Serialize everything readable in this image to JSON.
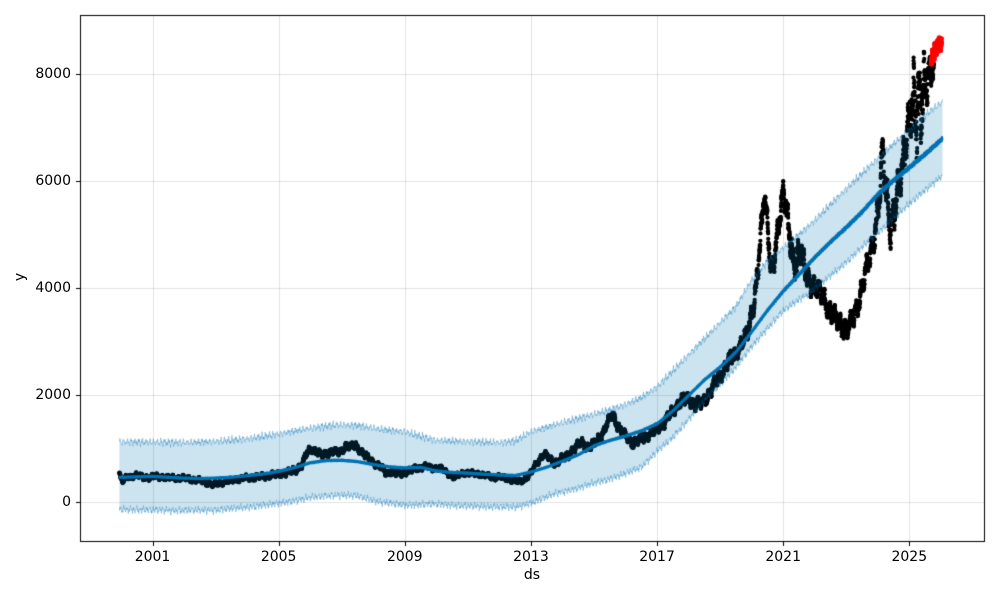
{
  "figure": {
    "background": "#ffffff"
  },
  "chart_data": {
    "type": "scatter",
    "title": "",
    "xlabel": "ds",
    "ylabel": "y",
    "xlim": [
      1998.7,
      2027.4
    ],
    "ylim": [
      -748,
      9102
    ],
    "xticks": [
      2001,
      2005,
      2009,
      2013,
      2017,
      2021,
      2025
    ],
    "yticks": [
      0,
      2000,
      4000,
      6000,
      8000
    ],
    "grid": true,
    "grid_color": "rgba(128,128,128,0.22)",
    "axis_color": "#000000",
    "colors": {
      "actuals": "#000000",
      "forecast_line": "#0072B2",
      "uncertainty_fill": "rgba(0,114,178,0.2)",
      "uncertainty_edge": "rgba(0,114,178,0.3)",
      "future_points": "#ff0000"
    },
    "series": [
      {
        "name": "actuals",
        "kind": "scatter",
        "color": "#000000",
        "marker_radius": 2.1,
        "samples_per_year": 365,
        "t_start": 1999.95,
        "t_end": 2025.78,
        "clamp_max": 8740,
        "keyframes": [
          [
            1999.95,
            520
          ],
          [
            2000.0,
            430
          ],
          [
            2000.08,
            380
          ],
          [
            2000.17,
            455
          ],
          [
            2000.3,
            480
          ],
          [
            2000.5,
            495
          ],
          [
            2000.7,
            465
          ],
          [
            2000.9,
            455
          ],
          [
            2001.1,
            480
          ],
          [
            2001.4,
            455
          ],
          [
            2001.7,
            450
          ],
          [
            2002.0,
            445
          ],
          [
            2002.3,
            420
          ],
          [
            2002.6,
            390
          ],
          [
            2002.9,
            320
          ],
          [
            2003.1,
            350
          ],
          [
            2003.35,
            385
          ],
          [
            2003.6,
            410
          ],
          [
            2003.85,
            445
          ],
          [
            2004.1,
            455
          ],
          [
            2004.4,
            470
          ],
          [
            2004.7,
            495
          ],
          [
            2005.0,
            520
          ],
          [
            2005.3,
            550
          ],
          [
            2005.55,
            600
          ],
          [
            2005.75,
            700
          ],
          [
            2005.9,
            920
          ],
          [
            2006.05,
            1000
          ],
          [
            2006.2,
            940
          ],
          [
            2006.35,
            870
          ],
          [
            2006.5,
            905
          ],
          [
            2006.7,
            945
          ],
          [
            2006.85,
            920
          ],
          [
            2007.0,
            960
          ],
          [
            2007.15,
            1060
          ],
          [
            2007.3,
            1030
          ],
          [
            2007.45,
            1060
          ],
          [
            2007.6,
            950
          ],
          [
            2007.75,
            860
          ],
          [
            2007.9,
            790
          ],
          [
            2008.1,
            700
          ],
          [
            2008.3,
            610
          ],
          [
            2008.45,
            530
          ],
          [
            2008.6,
            570
          ],
          [
            2008.75,
            520
          ],
          [
            2008.9,
            540
          ],
          [
            2009.1,
            570
          ],
          [
            2009.3,
            620
          ],
          [
            2009.5,
            645
          ],
          [
            2009.7,
            665
          ],
          [
            2009.9,
            630
          ],
          [
            2010.1,
            635
          ],
          [
            2010.3,
            570
          ],
          [
            2010.55,
            450
          ],
          [
            2010.7,
            510
          ],
          [
            2010.9,
            545
          ],
          [
            2011.1,
            535
          ],
          [
            2011.4,
            520
          ],
          [
            2011.6,
            490
          ],
          [
            2011.8,
            455
          ],
          [
            2012.0,
            470
          ],
          [
            2012.2,
            440
          ],
          [
            2012.45,
            400
          ],
          [
            2012.6,
            380
          ],
          [
            2012.8,
            420
          ],
          [
            2013.0,
            540
          ],
          [
            2013.2,
            740
          ],
          [
            2013.4,
            900
          ],
          [
            2013.55,
            830
          ],
          [
            2013.7,
            740
          ],
          [
            2013.85,
            760
          ],
          [
            2014.0,
            810
          ],
          [
            2014.2,
            890
          ],
          [
            2014.4,
            1000
          ],
          [
            2014.6,
            1130
          ],
          [
            2014.8,
            1010
          ],
          [
            2015.0,
            1080
          ],
          [
            2015.15,
            1200
          ],
          [
            2015.3,
            1300
          ],
          [
            2015.45,
            1500
          ],
          [
            2015.6,
            1660
          ],
          [
            2015.75,
            1420
          ],
          [
            2015.9,
            1280
          ],
          [
            2016.05,
            1230
          ],
          [
            2016.25,
            1080
          ],
          [
            2016.45,
            1170
          ],
          [
            2016.65,
            1230
          ],
          [
            2016.85,
            1280
          ],
          [
            2017.0,
            1380
          ],
          [
            2017.2,
            1450
          ],
          [
            2017.4,
            1620
          ],
          [
            2017.6,
            1780
          ],
          [
            2017.8,
            1900
          ],
          [
            2018.0,
            1940
          ],
          [
            2018.2,
            1800
          ],
          [
            2018.45,
            1870
          ],
          [
            2018.7,
            2060
          ],
          [
            2018.9,
            2280
          ],
          [
            2019.1,
            2450
          ],
          [
            2019.3,
            2650
          ],
          [
            2019.5,
            2800
          ],
          [
            2019.7,
            2950
          ],
          [
            2019.85,
            3150
          ],
          [
            2020.0,
            3550
          ],
          [
            2020.15,
            4000
          ],
          [
            2020.3,
            5000
          ],
          [
            2020.4,
            5800
          ],
          [
            2020.5,
            5300
          ],
          [
            2020.62,
            4250
          ],
          [
            2020.75,
            4600
          ],
          [
            2020.88,
            5300
          ],
          [
            2021.0,
            5880
          ],
          [
            2021.1,
            5500
          ],
          [
            2021.2,
            4900
          ],
          [
            2021.33,
            4420
          ],
          [
            2021.45,
            4650
          ],
          [
            2021.55,
            4750
          ],
          [
            2021.68,
            4300
          ],
          [
            2021.8,
            4150
          ],
          [
            2021.95,
            4060
          ],
          [
            2022.1,
            3950
          ],
          [
            2022.3,
            3800
          ],
          [
            2022.5,
            3550
          ],
          [
            2022.7,
            3400
          ],
          [
            2022.9,
            3280
          ],
          [
            2023.05,
            3230
          ],
          [
            2023.2,
            3400
          ],
          [
            2023.35,
            3700
          ],
          [
            2023.5,
            3950
          ],
          [
            2023.7,
            4500
          ],
          [
            2023.85,
            4900
          ],
          [
            2023.95,
            5200
          ],
          [
            2024.05,
            5600
          ],
          [
            2024.15,
            6500
          ],
          [
            2024.25,
            6000
          ],
          [
            2024.4,
            5150
          ],
          [
            2024.52,
            5300
          ],
          [
            2024.64,
            5800
          ],
          [
            2024.76,
            6300
          ],
          [
            2024.88,
            6800
          ],
          [
            2025.0,
            7000
          ],
          [
            2025.1,
            7300
          ],
          [
            2025.2,
            7500
          ],
          [
            2025.3,
            7600
          ],
          [
            2025.4,
            7500
          ],
          [
            2025.5,
            7600
          ],
          [
            2025.6,
            7900
          ],
          [
            2025.7,
            8150
          ],
          [
            2025.78,
            8250
          ]
        ],
        "spread_keyframes": [
          [
            2000,
            55
          ],
          [
            2004,
            55
          ],
          [
            2006,
            75
          ],
          [
            2008,
            70
          ],
          [
            2010,
            55
          ],
          [
            2012.6,
            50
          ],
          [
            2013.5,
            75
          ],
          [
            2015,
            95
          ],
          [
            2016,
            90
          ],
          [
            2017,
            100
          ],
          [
            2018,
            120
          ],
          [
            2019,
            140
          ],
          [
            2019.8,
            150
          ],
          [
            2020.25,
            300
          ],
          [
            2020.45,
            220
          ],
          [
            2020.7,
            280
          ],
          [
            2020.95,
            240
          ],
          [
            2021.2,
            320
          ],
          [
            2021.6,
            300
          ],
          [
            2022,
            220
          ],
          [
            2023,
            200
          ],
          [
            2023.8,
            260
          ],
          [
            2024.15,
            420
          ],
          [
            2024.5,
            380
          ],
          [
            2024.9,
            430
          ],
          [
            2025.05,
            550
          ],
          [
            2025.15,
            900
          ],
          [
            2025.3,
            1100
          ],
          [
            2025.45,
            800
          ],
          [
            2025.6,
            450
          ],
          [
            2025.78,
            280
          ]
        ]
      },
      {
        "name": "future_predictions",
        "kind": "scatter",
        "color": "#ff0000",
        "marker_radius": 2.6,
        "samples_per_year": 365,
        "t_start": 2025.7,
        "t_end": 2026.02,
        "clamp_max": 8760,
        "spread": 130,
        "keyframes": [
          [
            2025.7,
            8280
          ],
          [
            2025.8,
            8430
          ],
          [
            2025.9,
            8520
          ],
          [
            2026.0,
            8580
          ]
        ]
      },
      {
        "name": "forecast_yhat",
        "kind": "line",
        "color": "#0072B2",
        "width": 2.2,
        "t_start": 1999.95,
        "t_end": 2026.05,
        "keyframes": [
          [
            1999.95,
            460
          ],
          [
            2000.5,
            470
          ],
          [
            2001,
            478
          ],
          [
            2001.5,
            462
          ],
          [
            2002,
            447
          ],
          [
            2002.5,
            437
          ],
          [
            2003,
            447
          ],
          [
            2003.5,
            462
          ],
          [
            2004,
            492
          ],
          [
            2004.5,
            522
          ],
          [
            2005,
            572
          ],
          [
            2005.5,
            642
          ],
          [
            2006,
            732
          ],
          [
            2006.5,
            775
          ],
          [
            2007,
            780
          ],
          [
            2007.5,
            755
          ],
          [
            2008,
            700
          ],
          [
            2008.5,
            657
          ],
          [
            2009,
            637
          ],
          [
            2009.5,
            648
          ],
          [
            2010,
            578
          ],
          [
            2010.5,
            552
          ],
          [
            2011,
            540
          ],
          [
            2011.5,
            520
          ],
          [
            2012,
            505
          ],
          [
            2012.5,
            495
          ],
          [
            2013,
            560
          ],
          [
            2013.5,
            650
          ],
          [
            2014,
            762
          ],
          [
            2014.5,
            880
          ],
          [
            2015,
            1050
          ],
          [
            2015.5,
            1150
          ],
          [
            2016,
            1232
          ],
          [
            2016.5,
            1330
          ],
          [
            2017,
            1460
          ],
          [
            2017.5,
            1700
          ],
          [
            2018,
            1990
          ],
          [
            2018.5,
            2280
          ],
          [
            2019,
            2520
          ],
          [
            2019.5,
            2800
          ],
          [
            2020,
            3180
          ],
          [
            2020.5,
            3580
          ],
          [
            2021,
            3940
          ],
          [
            2021.5,
            4250
          ],
          [
            2022,
            4570
          ],
          [
            2022.5,
            4860
          ],
          [
            2023,
            5130
          ],
          [
            2023.5,
            5420
          ],
          [
            2024,
            5750
          ],
          [
            2024.5,
            6010
          ],
          [
            2025,
            6250
          ],
          [
            2025.5,
            6500
          ],
          [
            2026.05,
            6790
          ]
        ]
      },
      {
        "name": "uncertainty_interval",
        "kind": "band",
        "fill": "rgba(0,114,178,0.2)",
        "edge": "rgba(0,114,178,0.3)",
        "t_start": 1999.95,
        "t_end": 2026.05,
        "edge_noise": 65,
        "keyframes": [
          [
            1999.95,
            -140,
            1120
          ],
          [
            2001,
            -150,
            1120
          ],
          [
            2002,
            -160,
            1110
          ],
          [
            2003,
            -150,
            1130
          ],
          [
            2004,
            -100,
            1180
          ],
          [
            2005,
            -30,
            1270
          ],
          [
            2006,
            80,
            1380
          ],
          [
            2006.8,
            130,
            1440
          ],
          [
            2007.5,
            110,
            1430
          ],
          [
            2008.2,
            0,
            1360
          ],
          [
            2009,
            -60,
            1310
          ],
          [
            2010,
            -40,
            1150
          ],
          [
            2011,
            -80,
            1130
          ],
          [
            2012,
            -90,
            1110
          ],
          [
            2012.5,
            -100,
            1140
          ],
          [
            2013,
            -20,
            1310
          ],
          [
            2013.8,
            160,
            1450
          ],
          [
            2014.5,
            260,
            1560
          ],
          [
            2015,
            350,
            1640
          ],
          [
            2015.5,
            430,
            1720
          ],
          [
            2016,
            530,
            1820
          ],
          [
            2016.5,
            650,
            1950
          ],
          [
            2017,
            950,
            2150
          ],
          [
            2017.5,
            1200,
            2450
          ],
          [
            2018,
            1550,
            2750
          ],
          [
            2018.5,
            1880,
            3050
          ],
          [
            2019,
            2200,
            3350
          ],
          [
            2019.5,
            2520,
            3650
          ],
          [
            2020,
            2900,
            4150
          ],
          [
            2020.5,
            3250,
            4500
          ],
          [
            2021,
            3570,
            4750
          ],
          [
            2021.5,
            3780,
            5000
          ],
          [
            2022,
            3980,
            5260
          ],
          [
            2022.5,
            4230,
            5560
          ],
          [
            2023,
            4480,
            5850
          ],
          [
            2023.5,
            4760,
            6140
          ],
          [
            2024,
            5030,
            6420
          ],
          [
            2024.5,
            5300,
            6690
          ],
          [
            2025,
            5570,
            6960
          ],
          [
            2025.5,
            5830,
            7230
          ],
          [
            2026.05,
            6100,
            7480
          ]
        ]
      }
    ]
  }
}
